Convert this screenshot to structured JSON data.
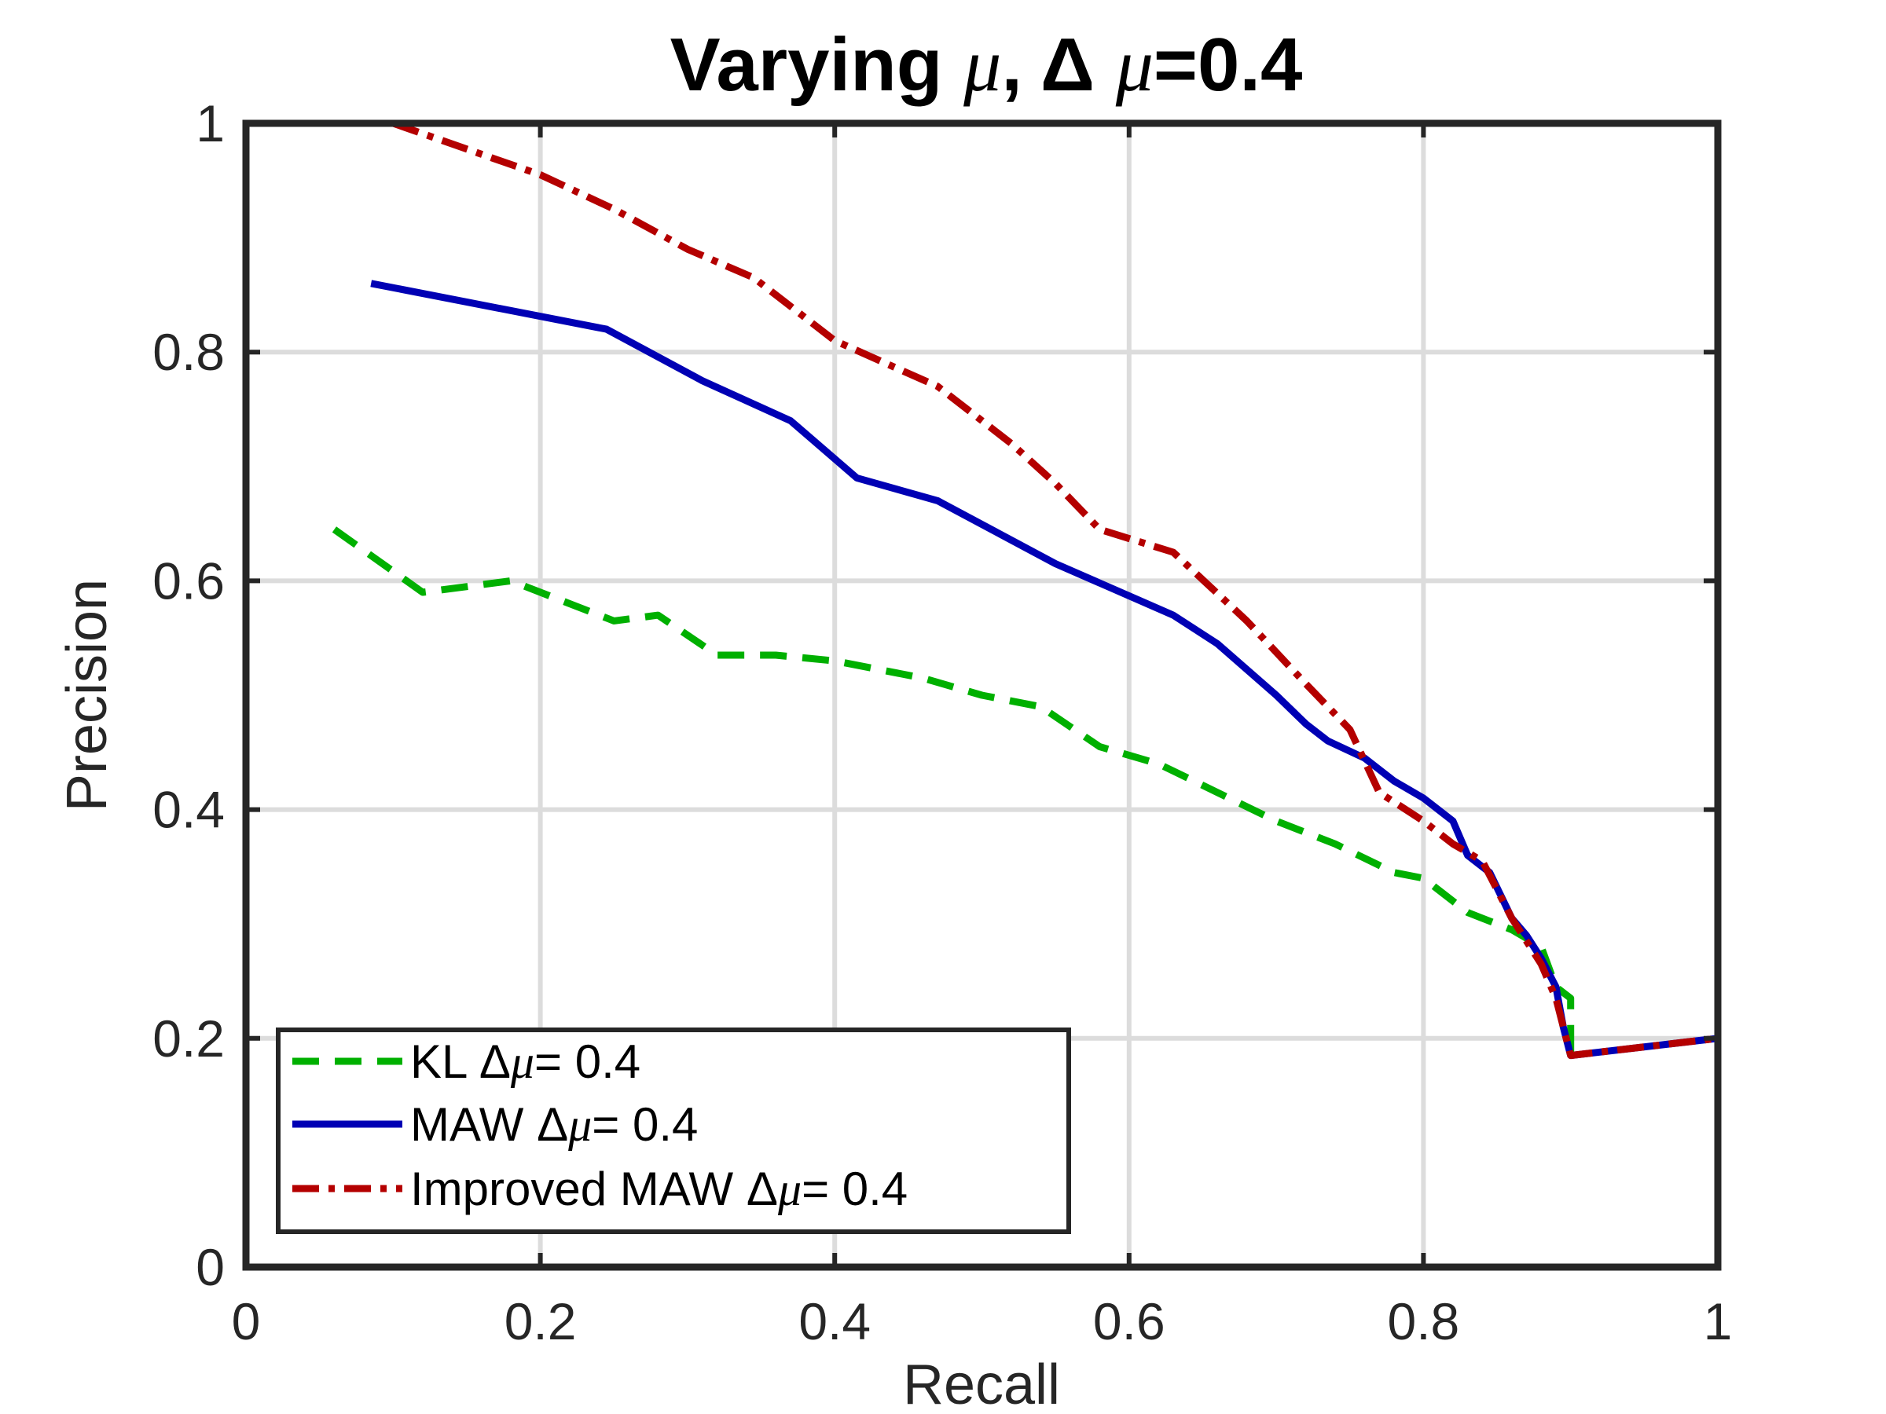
{
  "chart_data": {
    "type": "line",
    "title": "Varying μ, Δ μ=0.4",
    "xlabel": "Recall",
    "ylabel": "Precision",
    "xlim": [
      0,
      1
    ],
    "ylim": [
      0,
      1
    ],
    "xticks": [
      "0",
      "0.2",
      "0.4",
      "0.6",
      "0.8",
      "1"
    ],
    "yticks": [
      "0",
      "0.2",
      "0.4",
      "0.6",
      "0.8",
      "1"
    ],
    "grid": true,
    "legend_position": "bottom-left",
    "series": [
      {
        "name": "KL Δμ= 0.4",
        "color": "#00b000",
        "style": "dashed",
        "x": [
          0.06,
          0.12,
          0.18,
          0.25,
          0.28,
          0.32,
          0.36,
          0.4,
          0.46,
          0.5,
          0.54,
          0.58,
          0.62,
          0.66,
          0.7,
          0.74,
          0.78,
          0.8,
          0.82,
          0.83,
          0.84,
          0.86,
          0.88,
          0.89,
          0.9,
          0.9
        ],
        "y": [
          0.645,
          0.59,
          0.6,
          0.565,
          0.57,
          0.535,
          0.535,
          0.53,
          0.515,
          0.5,
          0.49,
          0.455,
          0.44,
          0.415,
          0.39,
          0.37,
          0.345,
          0.34,
          0.32,
          0.31,
          0.305,
          0.295,
          0.28,
          0.245,
          0.235,
          0.185
        ]
      },
      {
        "name": "MAW Δμ= 0.4",
        "color": "#0000b4",
        "style": "solid",
        "x": [
          0.085,
          0.245,
          0.31,
          0.37,
          0.415,
          0.47,
          0.55,
          0.63,
          0.66,
          0.7,
          0.72,
          0.735,
          0.76,
          0.78,
          0.8,
          0.82,
          0.83,
          0.845,
          0.86,
          0.87,
          0.88,
          0.89,
          0.895,
          0.9,
          1.0
        ],
        "y": [
          0.86,
          0.82,
          0.775,
          0.74,
          0.69,
          0.67,
          0.615,
          0.57,
          0.545,
          0.5,
          0.475,
          0.46,
          0.445,
          0.425,
          0.41,
          0.39,
          0.36,
          0.345,
          0.305,
          0.29,
          0.27,
          0.245,
          0.21,
          0.185,
          0.2
        ]
      },
      {
        "name": "Improved MAW Δμ= 0.4",
        "color": "#b40000",
        "style": "dashdot",
        "x": [
          0.1,
          0.2,
          0.25,
          0.3,
          0.345,
          0.4,
          0.47,
          0.52,
          0.55,
          0.58,
          0.63,
          0.68,
          0.72,
          0.75,
          0.77,
          0.8,
          0.82,
          0.84,
          0.86,
          0.88,
          0.89,
          0.895,
          0.9,
          1.0
        ],
        "y": [
          1.0,
          0.955,
          0.925,
          0.89,
          0.865,
          0.81,
          0.77,
          0.72,
          0.685,
          0.645,
          0.625,
          0.565,
          0.51,
          0.47,
          0.415,
          0.39,
          0.37,
          0.355,
          0.305,
          0.265,
          0.235,
          0.21,
          0.185,
          0.2
        ]
      }
    ],
    "legend": [
      {
        "prefix": "KL Δ",
        "mu": "μ",
        "suffix": "= 0.4"
      },
      {
        "prefix": "MAW Δ",
        "mu": "μ",
        "suffix": "= 0.4"
      },
      {
        "prefix": "Improved MAW Δ",
        "mu": "μ",
        "suffix": "= 0.4"
      }
    ],
    "title_parts": {
      "a": "Varying ",
      "b": "μ",
      "c": ", Δ ",
      "d": "μ",
      "e": "=0.4"
    }
  }
}
